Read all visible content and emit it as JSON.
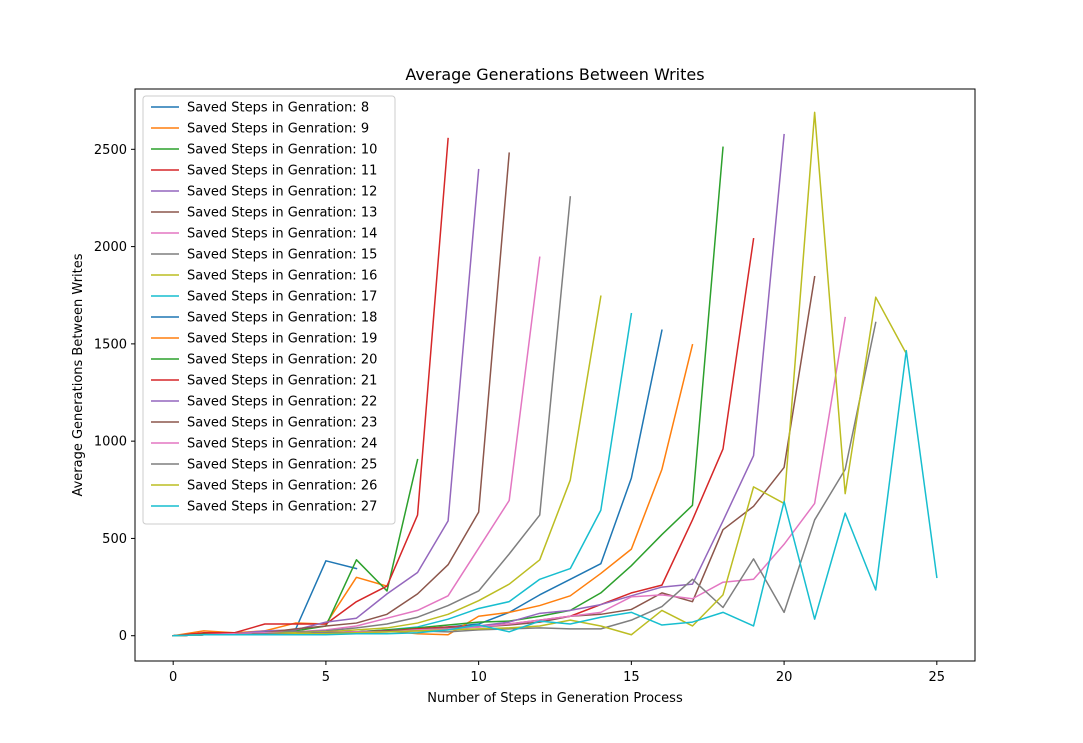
{
  "chart_data": {
    "type": "line",
    "title": "Average Generations Between Writes",
    "xlabel": "Number of Steps in Generation Process",
    "ylabel": "Average Generations Between Writes",
    "xlim": [
      -1.25,
      26.25
    ],
    "ylim": [
      -130,
      2810
    ],
    "xticks": [
      0,
      5,
      10,
      15,
      20,
      25
    ],
    "yticks": [
      0,
      500,
      1000,
      1500,
      2000,
      2500
    ],
    "grid": false,
    "legend": "top-left",
    "series": [
      {
        "name": "Saved Steps in Genration: 8",
        "color": "#1f77b4",
        "x": [
          0,
          1,
          2,
          3,
          4,
          5,
          6
        ],
        "y": [
          0,
          5,
          10,
          20,
          30,
          385,
          345
        ]
      },
      {
        "name": "Saved Steps in Genration: 9",
        "color": "#ff7f0e",
        "x": [
          0,
          1,
          2,
          3,
          4,
          5,
          6,
          7
        ],
        "y": [
          0,
          25,
          15,
          25,
          65,
          60,
          300,
          255
        ]
      },
      {
        "name": "Saved Steps in Genration: 10",
        "color": "#2ca02c",
        "x": [
          0,
          1,
          2,
          3,
          4,
          5,
          6,
          7,
          8
        ],
        "y": [
          0,
          10,
          10,
          15,
          25,
          50,
          390,
          230,
          905
        ]
      },
      {
        "name": "Saved Steps in Genration: 11",
        "color": "#d62728",
        "x": [
          0,
          1,
          2,
          3,
          4,
          5,
          6,
          7,
          8,
          9
        ],
        "y": [
          0,
          15,
          15,
          60,
          60,
          60,
          175,
          255,
          620,
          2555
        ]
      },
      {
        "name": "Saved Steps in Genration: 12",
        "color": "#9467bd",
        "x": [
          0,
          1,
          2,
          3,
          4,
          5,
          6,
          7,
          8,
          9,
          10
        ],
        "y": [
          0,
          5,
          10,
          25,
          30,
          70,
          90,
          215,
          325,
          590,
          2395
        ]
      },
      {
        "name": "Saved Steps in Genration: 13",
        "color": "#8c564b",
        "x": [
          0,
          1,
          2,
          3,
          4,
          5,
          6,
          7,
          8,
          9,
          10,
          11
        ],
        "y": [
          0,
          5,
          10,
          15,
          35,
          50,
          65,
          110,
          215,
          365,
          635,
          2480
        ]
      },
      {
        "name": "Saved Steps in Genration: 14",
        "color": "#e377c2",
        "x": [
          0,
          1,
          2,
          3,
          4,
          5,
          6,
          7,
          8,
          9,
          10,
          11,
          12
        ],
        "y": [
          0,
          5,
          10,
          15,
          20,
          30,
          50,
          90,
          130,
          205,
          450,
          695,
          1945
        ]
      },
      {
        "name": "Saved Steps in Genration: 15",
        "color": "#7f7f7f",
        "x": [
          0,
          1,
          2,
          3,
          4,
          5,
          6,
          7,
          8,
          9,
          10,
          11,
          12,
          13
        ],
        "y": [
          0,
          5,
          5,
          10,
          20,
          25,
          40,
          60,
          95,
          155,
          230,
          420,
          620,
          2255
        ]
      },
      {
        "name": "Saved Steps in Genration: 16",
        "color": "#bcbd22",
        "x": [
          0,
          1,
          2,
          3,
          4,
          5,
          6,
          7,
          8,
          9,
          10,
          11,
          12,
          13,
          14
        ],
        "y": [
          0,
          5,
          5,
          10,
          15,
          20,
          30,
          40,
          65,
          110,
          180,
          265,
          390,
          800,
          1745
        ]
      },
      {
        "name": "Saved Steps in Genration: 17",
        "color": "#17becf",
        "x": [
          0,
          1,
          2,
          3,
          4,
          5,
          6,
          7,
          8,
          9,
          10,
          11,
          12,
          13,
          14,
          15
        ],
        "y": [
          0,
          5,
          5,
          10,
          10,
          15,
          20,
          30,
          45,
          85,
          140,
          175,
          290,
          345,
          645,
          1655
        ]
      },
      {
        "name": "Saved Steps in Genration: 18",
        "color": "#1f77b4",
        "x": [
          0,
          1,
          2,
          3,
          4,
          5,
          6,
          7,
          8,
          9,
          10,
          11,
          12,
          13,
          14,
          15,
          16
        ],
        "y": [
          0,
          5,
          5,
          10,
          10,
          15,
          20,
          25,
          35,
          45,
          60,
          120,
          210,
          290,
          370,
          810,
          1570
        ]
      },
      {
        "name": "Saved Steps in Genration: 19",
        "color": "#ff7f0e",
        "x": [
          0,
          1,
          2,
          3,
          4,
          5,
          6,
          7,
          8,
          9,
          10,
          11,
          12,
          13,
          14,
          15,
          16,
          17
        ],
        "y": [
          0,
          5,
          5,
          10,
          10,
          15,
          20,
          25,
          10,
          5,
          100,
          120,
          155,
          205,
          320,
          445,
          855,
          1495
        ]
      },
      {
        "name": "Saved Steps in Genration: 20",
        "color": "#2ca02c",
        "x": [
          0,
          1,
          2,
          3,
          4,
          5,
          6,
          7,
          8,
          9,
          10,
          11,
          12,
          13,
          14,
          15,
          16,
          17,
          18
        ],
        "y": [
          0,
          5,
          5,
          10,
          10,
          15,
          20,
          30,
          40,
          55,
          70,
          75,
          100,
          130,
          220,
          360,
          520,
          670,
          2510
        ]
      },
      {
        "name": "Saved Steps in Genration: 21",
        "color": "#d62728",
        "x": [
          0,
          1,
          2,
          3,
          4,
          5,
          6,
          7,
          8,
          9,
          10,
          11,
          12,
          13,
          14,
          15,
          16,
          17,
          18,
          19
        ],
        "y": [
          0,
          5,
          5,
          10,
          10,
          15,
          20,
          25,
          35,
          45,
          50,
          60,
          80,
          100,
          160,
          220,
          260,
          595,
          960,
          2040
        ]
      },
      {
        "name": "Saved Steps in Genration: 22",
        "color": "#9467bd",
        "x": [
          0,
          1,
          2,
          3,
          4,
          5,
          6,
          7,
          8,
          9,
          10,
          11,
          12,
          13,
          14,
          15,
          16,
          17,
          18,
          19,
          20
        ],
        "y": [
          0,
          5,
          5,
          10,
          10,
          15,
          20,
          25,
          30,
          40,
          50,
          70,
          115,
          130,
          160,
          205,
          250,
          265,
          590,
          925,
          2575
        ]
      },
      {
        "name": "Saved Steps in Genration: 23",
        "color": "#8c564b",
        "x": [
          0,
          1,
          2,
          3,
          4,
          5,
          6,
          7,
          8,
          9,
          10,
          11,
          12,
          13,
          14,
          15,
          16,
          17,
          18,
          19,
          20,
          21
        ],
        "y": [
          0,
          5,
          5,
          10,
          10,
          15,
          20,
          25,
          30,
          40,
          45,
          55,
          70,
          100,
          110,
          135,
          220,
          175,
          545,
          665,
          865,
          1845
        ]
      },
      {
        "name": "Saved Steps in Genration: 24",
        "color": "#e377c2",
        "x": [
          0,
          1,
          2,
          3,
          4,
          5,
          6,
          7,
          8,
          9,
          10,
          11,
          12,
          13,
          14,
          15,
          16,
          17,
          18,
          19,
          20,
          21,
          22
        ],
        "y": [
          0,
          5,
          5,
          10,
          10,
          15,
          20,
          20,
          30,
          35,
          45,
          60,
          80,
          100,
          120,
          200,
          210,
          190,
          275,
          290,
          470,
          680,
          1635
        ]
      },
      {
        "name": "Saved Steps in Genration: 25",
        "color": "#7f7f7f",
        "x": [
          0,
          1,
          2,
          3,
          4,
          5,
          6,
          7,
          8,
          9,
          10,
          11,
          12,
          13,
          14,
          15,
          16,
          17,
          18,
          19,
          20,
          21,
          22,
          23
        ],
        "y": [
          0,
          5,
          5,
          10,
          10,
          15,
          15,
          20,
          25,
          20,
          30,
          35,
          40,
          35,
          35,
          80,
          150,
          290,
          145,
          395,
          120,
          595,
          855,
          1610
        ]
      },
      {
        "name": "Saved Steps in Genration: 26",
        "color": "#bcbd22",
        "x": [
          0,
          1,
          2,
          3,
          4,
          5,
          6,
          7,
          8,
          9,
          10,
          11,
          12,
          13,
          14,
          15,
          16,
          17,
          18,
          19,
          20,
          21,
          22,
          23,
          24
        ],
        "y": [
          0,
          5,
          5,
          5,
          10,
          10,
          15,
          20,
          25,
          30,
          35,
          40,
          50,
          80,
          50,
          5,
          130,
          50,
          210,
          765,
          680,
          2690,
          730,
          1740,
          1450
        ]
      },
      {
        "name": "Saved Steps in Genration: 27",
        "color": "#17becf",
        "x": [
          0,
          1,
          2,
          3,
          4,
          5,
          6,
          7,
          8,
          9,
          10,
          11,
          12,
          13,
          14,
          15,
          16,
          17,
          18,
          19,
          20,
          21,
          22,
          23,
          24,
          25
        ],
        "y": [
          0,
          5,
          5,
          5,
          5,
          5,
          10,
          10,
          15,
          30,
          55,
          20,
          75,
          60,
          95,
          120,
          55,
          70,
          120,
          50,
          690,
          85,
          630,
          235,
          1465,
          300
        ]
      }
    ]
  }
}
